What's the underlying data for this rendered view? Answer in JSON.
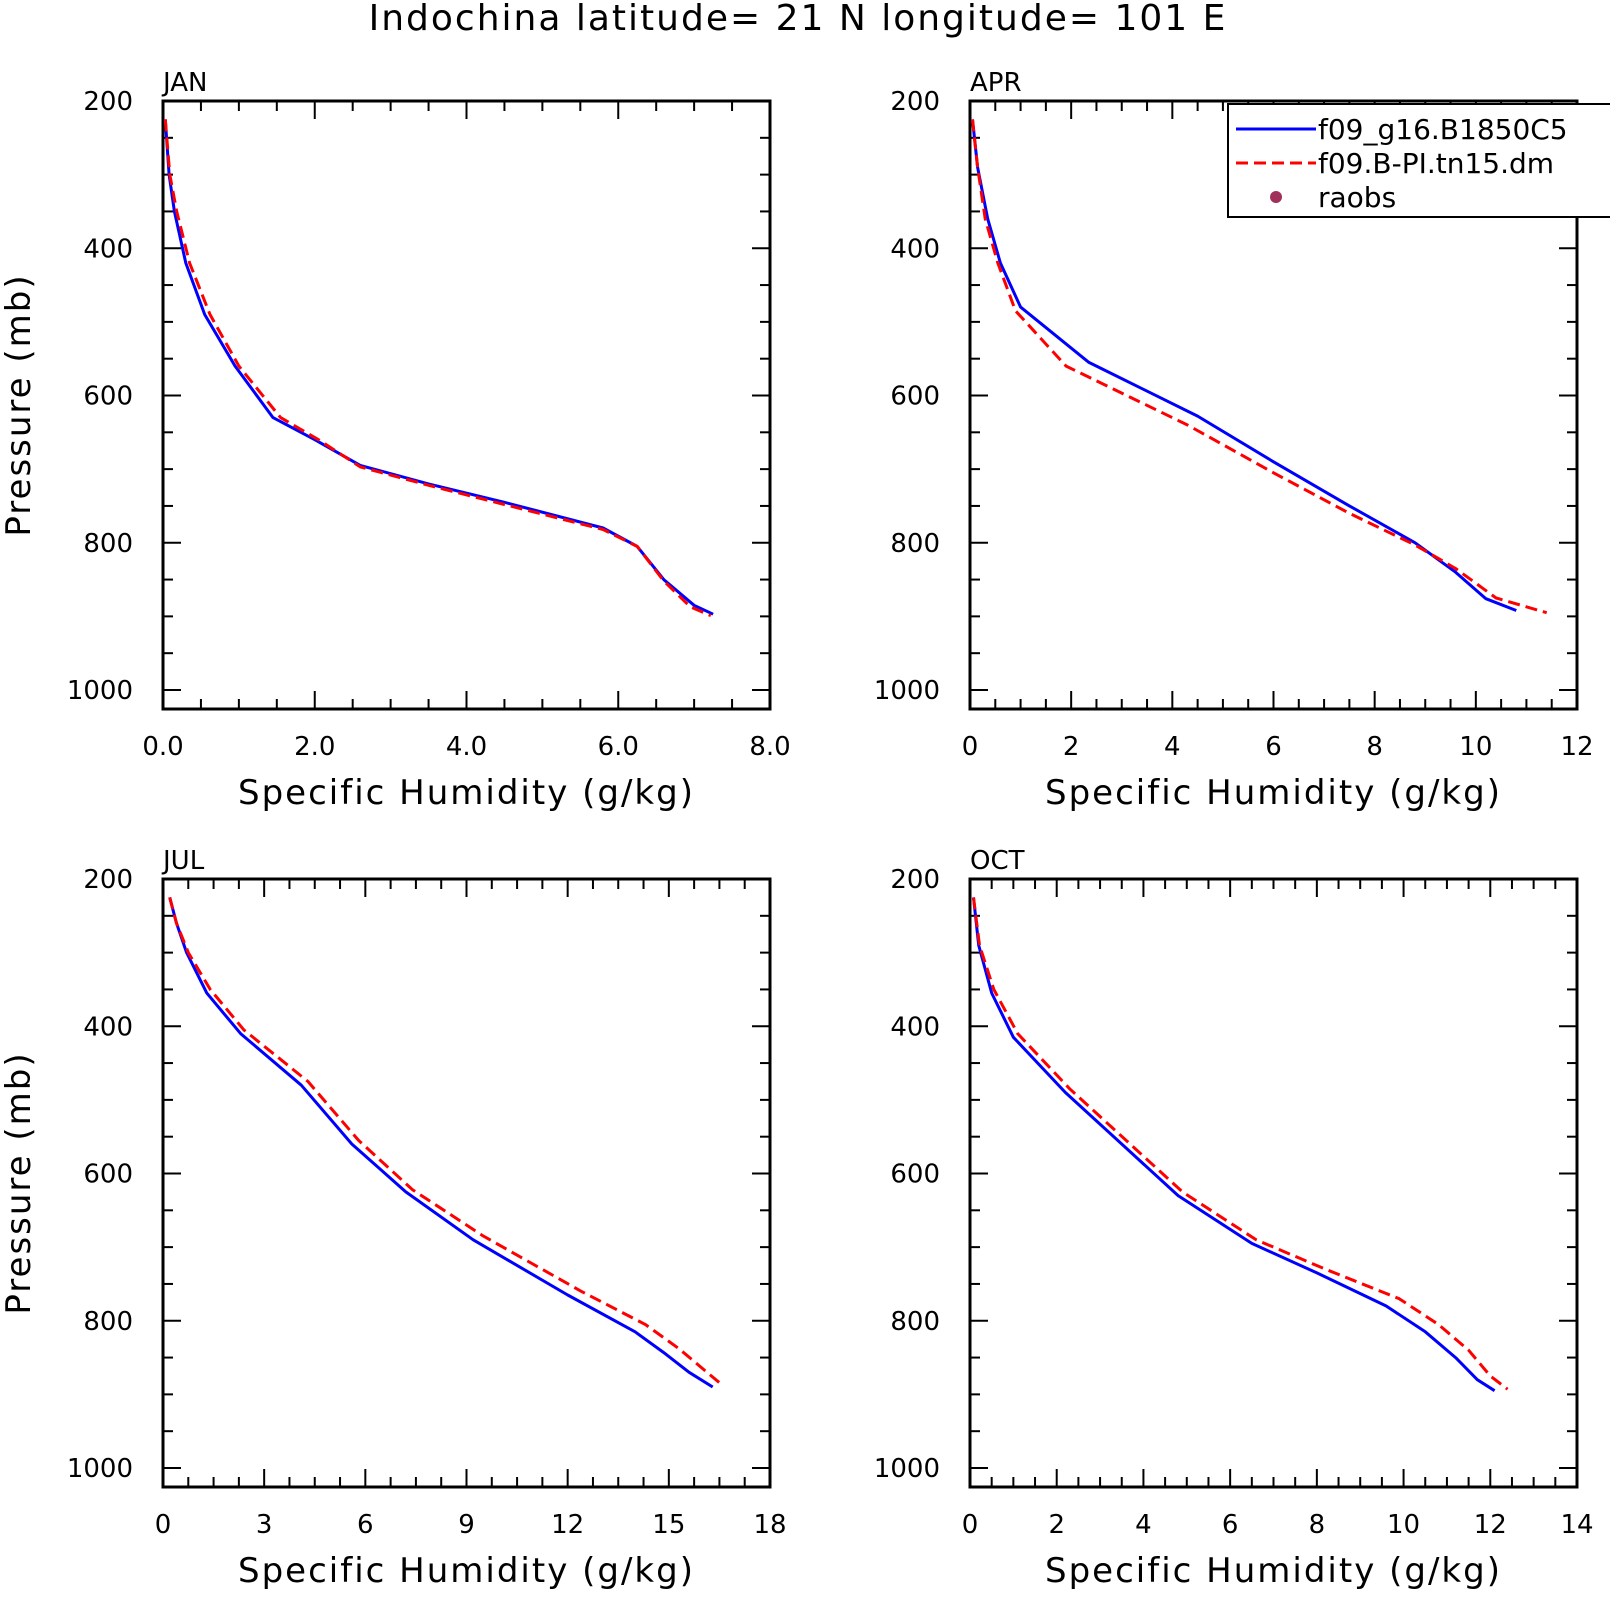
{
  "title": "Indochina  latitude= 21 N longitude= 101 E",
  "legend": {
    "entries": [
      {
        "label": "f09_g16.B1850C5",
        "style": "solid",
        "color": "#0000ff"
      },
      {
        "label": "f09.B-PI.tn15.dm",
        "style": "dashed",
        "color": "#ff0000"
      },
      {
        "label": "raobs",
        "style": "dot",
        "color": "#a0305a"
      }
    ],
    "placement": "top-right of APR panel"
  },
  "chart_data": [
    {
      "type": "line",
      "panel": "JAN",
      "xlabel": "Specific Humidity (g/kg)",
      "ylabel": "Pressure (mb)",
      "xlim": [
        0,
        8
      ],
      "ylim": [
        1000,
        200
      ],
      "y_inverted": true,
      "xticks": [
        "0.0",
        "2.0",
        "4.0",
        "6.0",
        "8.0"
      ],
      "yticks": [
        "200",
        "400",
        "600",
        "800",
        "1000"
      ],
      "series": [
        {
          "name": "f09_g16.B1850C5",
          "style": "solid",
          "color": "#0000ff",
          "x": [
            0.03,
            0.08,
            0.15,
            0.3,
            0.55,
            0.95,
            1.45,
            2.0,
            2.6,
            3.5,
            4.5,
            5.8,
            6.25,
            6.6,
            7.0,
            7.25
          ],
          "y": [
            225,
            300,
            350,
            420,
            490,
            560,
            630,
            660,
            695,
            720,
            745,
            780,
            805,
            850,
            885,
            897
          ]
        },
        {
          "name": "f09.B-PI.tn15.dm",
          "style": "dashed",
          "color": "#ff0000",
          "x": [
            0.03,
            0.09,
            0.18,
            0.35,
            0.62,
            1.0,
            1.55,
            2.05,
            2.6,
            3.5,
            4.5,
            5.8,
            6.25,
            6.6,
            6.95,
            7.22
          ],
          "y": [
            225,
            300,
            350,
            420,
            490,
            560,
            630,
            660,
            697,
            722,
            748,
            782,
            805,
            852,
            887,
            899
          ]
        }
      ]
    },
    {
      "type": "line",
      "panel": "APR",
      "xlabel": "Specific Humidity (g/kg)",
      "ylabel": "",
      "xlim": [
        0,
        12
      ],
      "ylim": [
        1000,
        200
      ],
      "y_inverted": true,
      "xticks": [
        "0",
        "2",
        "4",
        "6",
        "8",
        "10",
        "12"
      ],
      "yticks": [
        "200",
        "400",
        "600",
        "800",
        "1000"
      ],
      "series": [
        {
          "name": "f09_g16.B1850C5",
          "style": "solid",
          "color": "#0000ff",
          "x": [
            0.05,
            0.15,
            0.35,
            0.6,
            1.0,
            2.35,
            4.5,
            6.0,
            7.5,
            8.8,
            9.6,
            10.2,
            10.8
          ],
          "y": [
            225,
            290,
            360,
            420,
            480,
            555,
            628,
            690,
            750,
            800,
            840,
            876,
            892
          ]
        },
        {
          "name": "f09.B-PI.tn15.dm",
          "style": "dashed",
          "color": "#ff0000",
          "x": [
            0.05,
            0.15,
            0.3,
            0.55,
            0.9,
            1.9,
            4.3,
            6.0,
            7.5,
            8.8,
            9.6,
            10.4,
            11.4
          ],
          "y": [
            225,
            290,
            360,
            420,
            485,
            560,
            640,
            705,
            760,
            803,
            835,
            875,
            895
          ]
        }
      ]
    },
    {
      "type": "line",
      "panel": "JUL",
      "xlabel": "Specific Humidity (g/kg)",
      "ylabel": "Pressure (mb)",
      "xlim": [
        0,
        18
      ],
      "ylim": [
        1000,
        200
      ],
      "y_inverted": true,
      "xticks": [
        "0",
        "3",
        "6",
        "9",
        "12",
        "15",
        "18"
      ],
      "yticks": [
        "200",
        "400",
        "600",
        "800",
        "1000"
      ],
      "series": [
        {
          "name": "f09_g16.B1850C5",
          "style": "solid",
          "color": "#0000ff",
          "x": [
            0.2,
            0.4,
            0.7,
            1.3,
            2.3,
            4.1,
            5.6,
            7.2,
            9.2,
            12.0,
            14.0,
            14.9,
            15.6,
            16.3
          ],
          "y": [
            225,
            260,
            300,
            355,
            410,
            480,
            560,
            625,
            690,
            765,
            815,
            845,
            870,
            890
          ]
        },
        {
          "name": "f09.B-PI.tn15.dm",
          "style": "dashed",
          "color": "#ff0000",
          "x": [
            0.2,
            0.4,
            0.75,
            1.4,
            2.4,
            4.3,
            5.8,
            7.4,
            9.5,
            12.4,
            14.3,
            15.3,
            16.0,
            16.6
          ],
          "y": [
            225,
            260,
            300,
            350,
            405,
            475,
            555,
            622,
            685,
            760,
            805,
            838,
            865,
            888
          ]
        }
      ]
    },
    {
      "type": "line",
      "panel": "OCT",
      "xlabel": "Specific Humidity (g/kg)",
      "ylabel": "",
      "xlim": [
        0,
        14
      ],
      "ylim": [
        1000,
        200
      ],
      "y_inverted": true,
      "xticks": [
        "0",
        "2",
        "4",
        "6",
        "8",
        "10",
        "12",
        "14"
      ],
      "yticks": [
        "200",
        "400",
        "600",
        "800",
        "1000"
      ],
      "series": [
        {
          "name": "f09_g16.B1850C5",
          "style": "solid",
          "color": "#0000ff",
          "x": [
            0.08,
            0.2,
            0.5,
            1.0,
            2.2,
            4.8,
            6.5,
            8.0,
            9.6,
            10.5,
            11.2,
            11.7,
            12.1
          ],
          "y": [
            225,
            290,
            355,
            415,
            490,
            630,
            695,
            735,
            780,
            815,
            850,
            880,
            895
          ]
        },
        {
          "name": "f09.B-PI.tn15.dm",
          "style": "dashed",
          "color": "#ff0000",
          "x": [
            0.08,
            0.22,
            0.55,
            1.1,
            2.3,
            4.9,
            6.6,
            8.2,
            9.9,
            10.8,
            11.5,
            12.0,
            12.4
          ],
          "y": [
            225,
            290,
            350,
            410,
            485,
            625,
            690,
            730,
            770,
            805,
            840,
            875,
            893
          ]
        }
      ]
    }
  ]
}
